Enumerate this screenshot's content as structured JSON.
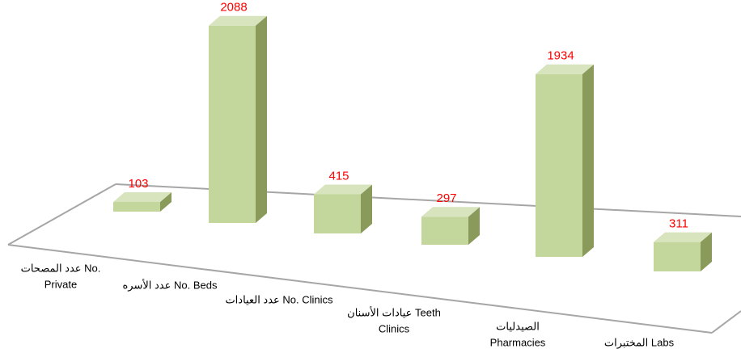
{
  "chart_data": {
    "type": "bar3d",
    "categories": [
      [
        "عدد المصحات No.",
        "Private"
      ],
      [
        "عدد الأسره No. Beds"
      ],
      [
        "عدد العيادات No. Clinics"
      ],
      [
        "عيادات الأسنان Teeth",
        "Clinics"
      ],
      [
        "الصيدليات",
        "Pharmacies"
      ],
      [
        "المختبرات Labs"
      ]
    ],
    "values": [
      103,
      2088,
      415,
      297,
      1934,
      311
    ],
    "color": "#c3d69b",
    "label_color": "#ff0000"
  }
}
